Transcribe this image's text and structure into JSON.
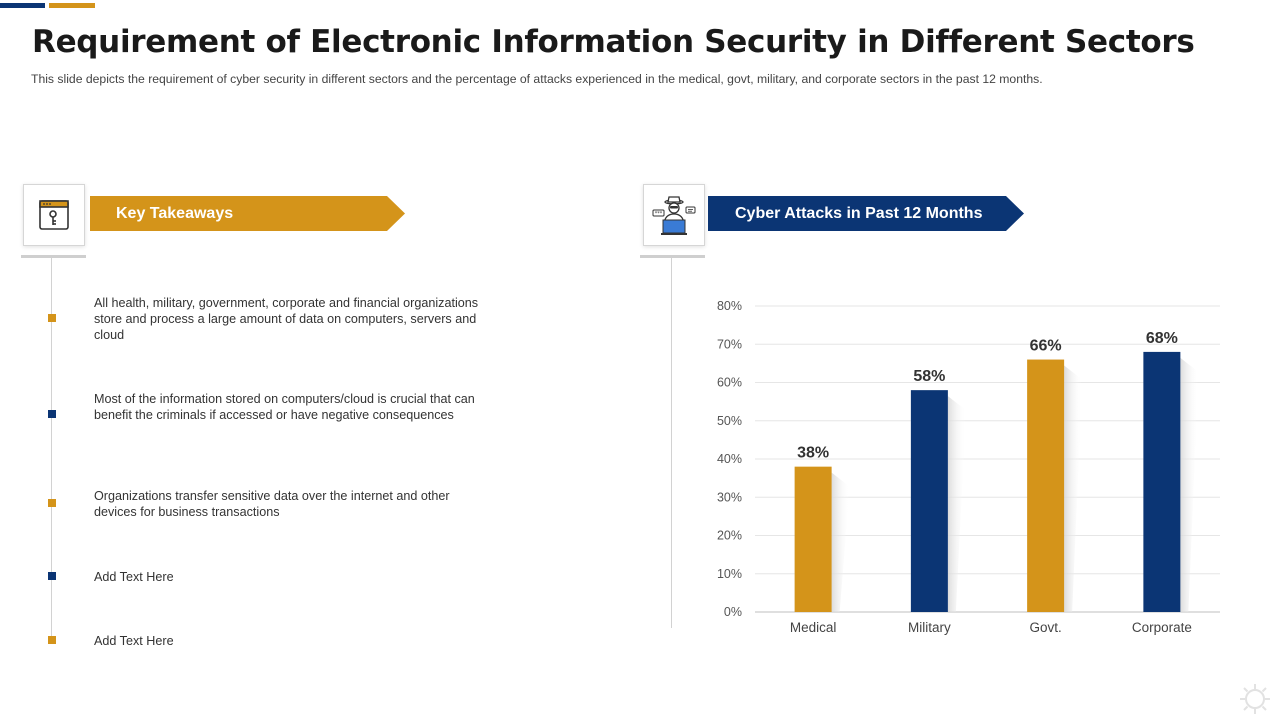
{
  "title": "Requirement of Electronic Information Security in Different Sectors",
  "subtitle": "This slide depicts the requirement  of cyber security in different  sectors and the percentage  of attacks experienced  in the medical, govt, military, and corporate sectors in the past 12 months.",
  "colors": {
    "gold": "#d4941a",
    "navy": "#0b3574",
    "grid": "#e6e6e6",
    "axis": "#bfbfbf"
  },
  "left_panel": {
    "icon": "web-window-key-icon",
    "banner": "Key Takeaways",
    "items": [
      {
        "text": "All health, military, government,  corporate and financial organizations store and process a large  amount of data on computers, servers  and cloud",
        "bullet_color": "#d4941a"
      },
      {
        "text": "Most of the information  stored on computers/cloud is crucial that can benefit the criminals if accessed or have  negative consequences",
        "bullet_color": "#0b3574"
      },
      {
        "text": "Organizations transfer  sensitive data over the internet and other devices for business transactions",
        "bullet_color": "#d4941a"
      },
      {
        "text": "Add Text Here",
        "bullet_color": "#0b3574"
      },
      {
        "text": "Add Text Here",
        "bullet_color": "#d4941a"
      }
    ]
  },
  "right_panel": {
    "icon": "hacker-laptop-icon",
    "banner": "Cyber Attacks in Past 12 Months"
  },
  "chart_data": {
    "type": "bar",
    "title": "Cyber Attacks in Past 12 Months",
    "categories": [
      "Medical",
      "Military",
      "Govt.",
      "Corporate"
    ],
    "values": [
      38,
      58,
      66,
      68
    ],
    "data_labels": [
      "38%",
      "58%",
      "66%",
      "68%"
    ],
    "bar_colors": [
      "#d4941a",
      "#0b3574",
      "#d4941a",
      "#0b3574"
    ],
    "y_ticks": [
      0,
      10,
      20,
      30,
      40,
      50,
      60,
      70,
      80
    ],
    "y_tick_labels": [
      "0%",
      "10%",
      "20%",
      "30%",
      "40%",
      "50%",
      "60%",
      "70%",
      "80%"
    ],
    "ylim": [
      0,
      80
    ],
    "xlabel": "",
    "ylabel": "",
    "grid": true,
    "legend": "none"
  }
}
